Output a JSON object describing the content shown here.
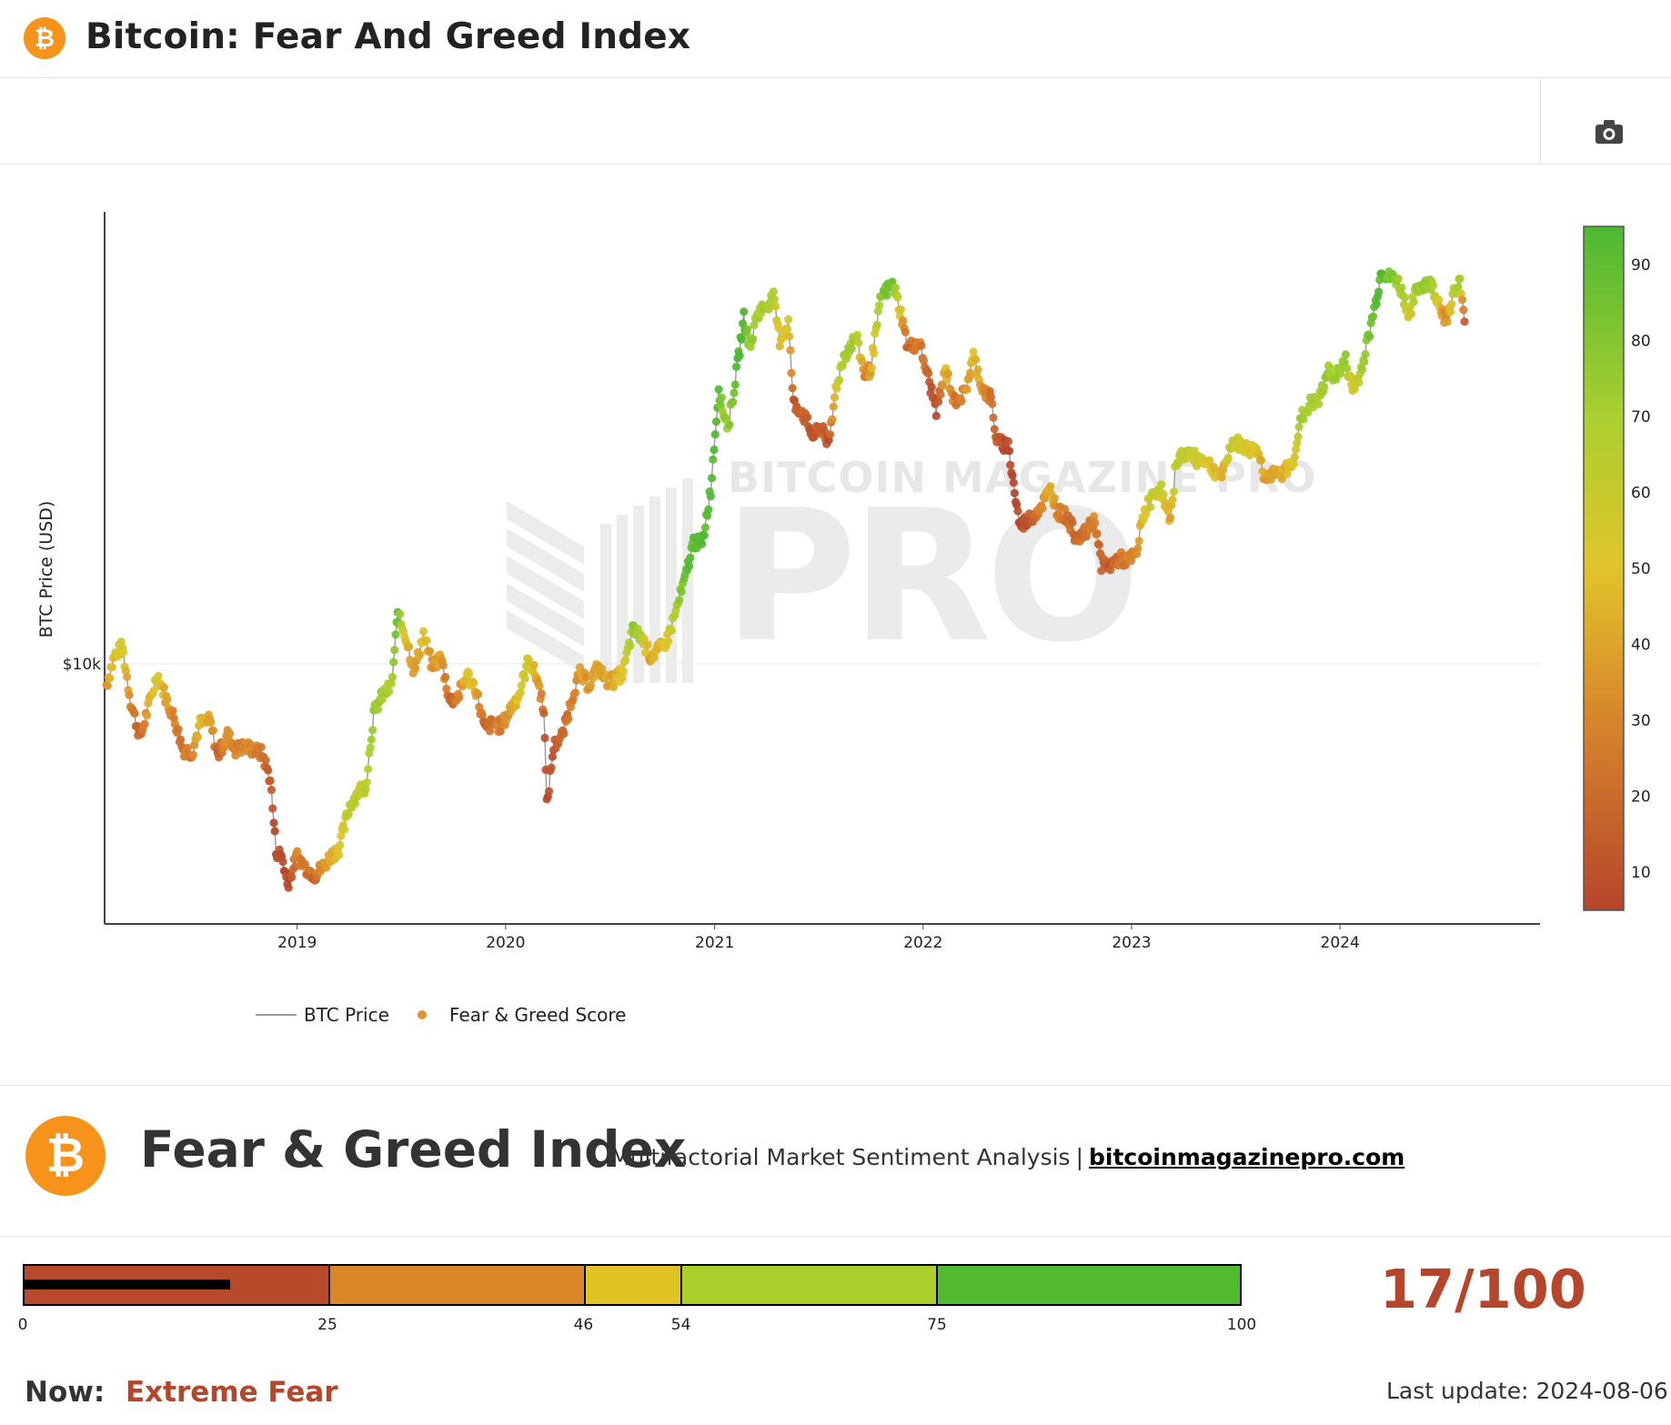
{
  "header": {
    "title": "Bitcoin: Fear And Greed Index",
    "logo_glyph": "₿"
  },
  "toolbar": {
    "camera_icon": "camera-icon"
  },
  "chart_data": {
    "type": "scatter",
    "title": "",
    "ylabel": "BTC Price (USD)",
    "y_scale": "log",
    "y_ticks": [
      {
        "value": 10000,
        "label": "$10k"
      }
    ],
    "x_ticks": [
      "2019",
      "2020",
      "2021",
      "2022",
      "2023",
      "2024"
    ],
    "legend": {
      "placement": "bottom-left",
      "price_label": "BTC Price",
      "score_label": "Fear & Greed Score"
    },
    "colorbar": {
      "ticks": [
        10,
        20,
        30,
        40,
        50,
        60,
        70,
        80,
        90
      ],
      "range": [
        5,
        95
      ]
    },
    "colors": {
      "low": "#b5452b",
      "mid_low": "#d9822b",
      "mid": "#e1c42a",
      "mid_high": "#abcf2f",
      "high": "#4db833"
    },
    "watermark": "BITCOIN MAGAZINE PRO",
    "series": [
      {
        "name": "BTC Price",
        "points": [
          [
            "2018-02-01",
            9000,
            36
          ],
          [
            "2018-02-15",
            10400,
            50
          ],
          [
            "2018-03-01",
            10900,
            58
          ],
          [
            "2018-03-15",
            8300,
            30
          ],
          [
            "2018-04-01",
            6900,
            20
          ],
          [
            "2018-04-15",
            8000,
            40
          ],
          [
            "2018-05-01",
            9500,
            58
          ],
          [
            "2018-05-15",
            8500,
            40
          ],
          [
            "2018-06-01",
            7500,
            30
          ],
          [
            "2018-06-15",
            6500,
            25
          ],
          [
            "2018-07-01",
            6400,
            30
          ],
          [
            "2018-07-15",
            7400,
            45
          ],
          [
            "2018-08-01",
            7500,
            40
          ],
          [
            "2018-08-15",
            6300,
            20
          ],
          [
            "2018-09-01",
            7000,
            35
          ],
          [
            "2018-09-15",
            6500,
            30
          ],
          [
            "2018-10-01",
            6600,
            32
          ],
          [
            "2018-10-15",
            6500,
            30
          ],
          [
            "2018-11-01",
            6350,
            25
          ],
          [
            "2018-11-15",
            5600,
            15
          ],
          [
            "2018-11-25",
            3900,
            10
          ],
          [
            "2018-12-05",
            3800,
            15
          ],
          [
            "2018-12-15",
            3300,
            10
          ],
          [
            "2019-01-01",
            3800,
            30
          ],
          [
            "2019-01-15",
            3600,
            25
          ],
          [
            "2019-02-01",
            3450,
            20
          ],
          [
            "2019-02-15",
            3600,
            35
          ],
          [
            "2019-03-01",
            3800,
            42
          ],
          [
            "2019-03-15",
            3950,
            50
          ],
          [
            "2019-04-03",
            4900,
            65
          ],
          [
            "2019-04-20",
            5300,
            62
          ],
          [
            "2019-05-01",
            5400,
            65
          ],
          [
            "2019-05-15",
            7800,
            75
          ],
          [
            "2019-06-01",
            8600,
            72
          ],
          [
            "2019-06-15",
            8900,
            68
          ],
          [
            "2019-06-26",
            12800,
            88
          ],
          [
            "2019-07-10",
            11500,
            50
          ],
          [
            "2019-07-25",
            9600,
            35
          ],
          [
            "2019-08-10",
            11600,
            50
          ],
          [
            "2019-08-25",
            9900,
            35
          ],
          [
            "2019-09-10",
            10300,
            40
          ],
          [
            "2019-09-25",
            8300,
            20
          ],
          [
            "2019-10-10",
            8500,
            30
          ],
          [
            "2019-10-25",
            9500,
            50
          ],
          [
            "2019-11-10",
            8800,
            40
          ],
          [
            "2019-11-25",
            7200,
            20
          ],
          [
            "2019-12-10",
            7400,
            25
          ],
          [
            "2019-12-25",
            7300,
            30
          ],
          [
            "2020-01-10",
            8000,
            40
          ],
          [
            "2020-01-25",
            8600,
            50
          ],
          [
            "2020-02-10",
            10200,
            60
          ],
          [
            "2020-02-25",
            9300,
            40
          ],
          [
            "2020-03-08",
            8000,
            20
          ],
          [
            "2020-03-13",
            4900,
            10
          ],
          [
            "2020-03-25",
            6600,
            15
          ],
          [
            "2020-04-10",
            7000,
            20
          ],
          [
            "2020-04-30",
            8800,
            30
          ],
          [
            "2020-05-10",
            9500,
            40
          ],
          [
            "2020-05-25",
            9000,
            35
          ],
          [
            "2020-06-10",
            9800,
            40
          ],
          [
            "2020-06-25",
            9200,
            40
          ],
          [
            "2020-07-10",
            9200,
            42
          ],
          [
            "2020-07-25",
            9600,
            52
          ],
          [
            "2020-08-10",
            11800,
            78
          ],
          [
            "2020-08-25",
            11500,
            70
          ],
          [
            "2020-09-10",
            10400,
            40
          ],
          [
            "2020-09-25",
            10700,
            45
          ],
          [
            "2020-10-10",
            11300,
            55
          ],
          [
            "2020-10-25",
            13000,
            70
          ],
          [
            "2020-11-10",
            15300,
            86
          ],
          [
            "2020-11-25",
            18500,
            90
          ],
          [
            "2020-12-10",
            18200,
            88
          ],
          [
            "2020-12-25",
            24000,
            92
          ],
          [
            "2021-01-08",
            40000,
            93
          ],
          [
            "2021-01-15",
            36000,
            75
          ],
          [
            "2021-01-25",
            33000,
            75
          ],
          [
            "2021-02-10",
            45000,
            93
          ],
          [
            "2021-02-21",
            57000,
            95
          ],
          [
            "2021-03-05",
            49000,
            75
          ],
          [
            "2021-03-15",
            58000,
            72
          ],
          [
            "2021-04-14",
            63000,
            70
          ],
          [
            "2021-04-25",
            51000,
            48
          ],
          [
            "2021-05-10",
            56000,
            55
          ],
          [
            "2021-05-19",
            37000,
            15
          ],
          [
            "2021-06-01",
            36000,
            20
          ],
          [
            "2021-06-22",
            31500,
            15
          ],
          [
            "2021-07-10",
            33000,
            20
          ],
          [
            "2021-07-20",
            29800,
            12
          ],
          [
            "2021-08-01",
            40000,
            55
          ],
          [
            "2021-08-15",
            47000,
            70
          ],
          [
            "2021-09-06",
            52000,
            74
          ],
          [
            "2021-09-20",
            43000,
            30
          ],
          [
            "2021-10-01",
            44000,
            40
          ],
          [
            "2021-10-20",
            64000,
            80
          ],
          [
            "2021-11-10",
            67500,
            84
          ],
          [
            "2021-11-25",
            57000,
            40
          ],
          [
            "2021-12-05",
            49000,
            20
          ],
          [
            "2021-12-25",
            50500,
            30
          ],
          [
            "2022-01-10",
            42000,
            20
          ],
          [
            "2022-01-24",
            36000,
            10
          ],
          [
            "2022-02-10",
            44000,
            45
          ],
          [
            "2022-02-24",
            37500,
            25
          ],
          [
            "2022-03-15",
            39000,
            30
          ],
          [
            "2022-03-30",
            47000,
            50
          ],
          [
            "2022-04-15",
            40000,
            35
          ],
          [
            "2022-04-30",
            38000,
            25
          ],
          [
            "2022-05-10",
            30500,
            15
          ],
          [
            "2022-05-30",
            30000,
            12
          ],
          [
            "2022-06-14",
            22000,
            8
          ],
          [
            "2022-06-20",
            20000,
            10
          ],
          [
            "2022-07-10",
            21000,
            20
          ],
          [
            "2022-07-25",
            22000,
            28
          ],
          [
            "2022-08-12",
            24000,
            45
          ],
          [
            "2022-08-25",
            21500,
            30
          ],
          [
            "2022-09-10",
            21000,
            25
          ],
          [
            "2022-09-25",
            19000,
            20
          ],
          [
            "2022-10-10",
            19200,
            25
          ],
          [
            "2022-10-29",
            20600,
            32
          ],
          [
            "2022-11-09",
            16500,
            20
          ],
          [
            "2022-11-25",
            16400,
            18
          ],
          [
            "2022-12-10",
            17000,
            25
          ],
          [
            "2022-12-25",
            16800,
            28
          ],
          [
            "2023-01-10",
            17300,
            32
          ],
          [
            "2023-01-20",
            21000,
            50
          ],
          [
            "2023-02-05",
            23000,
            60
          ],
          [
            "2023-02-20",
            24500,
            62
          ],
          [
            "2023-03-10",
            20200,
            40
          ],
          [
            "2023-03-20",
            28000,
            65
          ],
          [
            "2023-04-10",
            29000,
            62
          ],
          [
            "2023-04-25",
            28000,
            58
          ],
          [
            "2023-05-10",
            28000,
            52
          ],
          [
            "2023-05-25",
            26500,
            48
          ],
          [
            "2023-06-10",
            25800,
            42
          ],
          [
            "2023-06-25",
            30500,
            62
          ],
          [
            "2023-07-10",
            30200,
            56
          ],
          [
            "2023-07-25",
            29300,
            52
          ],
          [
            "2023-08-10",
            29500,
            50
          ],
          [
            "2023-08-20",
            26000,
            38
          ],
          [
            "2023-09-10",
            25800,
            40
          ],
          [
            "2023-09-25",
            26300,
            45
          ],
          [
            "2023-10-10",
            27500,
            50
          ],
          [
            "2023-10-25",
            34500,
            72
          ],
          [
            "2023-11-10",
            37000,
            72
          ],
          [
            "2023-11-25",
            37500,
            70
          ],
          [
            "2023-12-10",
            43500,
            74
          ],
          [
            "2023-12-25",
            42800,
            72
          ],
          [
            "2024-01-11",
            46000,
            74
          ],
          [
            "2024-01-23",
            39500,
            52
          ],
          [
            "2024-02-05",
            43000,
            68
          ],
          [
            "2024-02-20",
            52000,
            80
          ],
          [
            "2024-03-05",
            63000,
            88
          ],
          [
            "2024-03-14",
            73000,
            90
          ],
          [
            "2024-03-25",
            70000,
            82
          ],
          [
            "2024-04-10",
            69000,
            76
          ],
          [
            "2024-04-20",
            64000,
            70
          ],
          [
            "2024-05-01",
            58000,
            55
          ],
          [
            "2024-05-15",
            66000,
            76
          ],
          [
            "2024-05-30",
            68000,
            74
          ],
          [
            "2024-06-10",
            67000,
            72
          ],
          [
            "2024-06-24",
            61000,
            48
          ],
          [
            "2024-07-05",
            56000,
            30
          ],
          [
            "2024-07-20",
            66000,
            68
          ],
          [
            "2024-07-29",
            68000,
            70
          ],
          [
            "2024-08-02",
            62000,
            35
          ],
          [
            "2024-08-06",
            56000,
            17
          ]
        ]
      },
      {
        "name": "Fear & Greed Score"
      }
    ]
  },
  "index_panel": {
    "logo_glyph": "₿",
    "title": "Fear & Greed Index",
    "subtitle": "Multifactorial Market Sentiment Analysis",
    "separator": "|",
    "link_text": "bitcoinmagazinepro.com"
  },
  "gauge": {
    "value": 17,
    "max": 100,
    "score_text": "17/100",
    "segments": [
      {
        "from": 0,
        "to": 25,
        "color": "#b84a2c"
      },
      {
        "from": 25,
        "to": 46,
        "color": "#d98727"
      },
      {
        "from": 46,
        "to": 54,
        "color": "#e2c326"
      },
      {
        "from": 54,
        "to": 75,
        "color": "#accf2c"
      },
      {
        "from": 75,
        "to": 100,
        "color": "#52ba2f"
      }
    ],
    "ticks": [
      "0",
      "25",
      "46",
      "54",
      "75",
      "100"
    ]
  },
  "status": {
    "now_label": "Now:",
    "now_value": "Extreme Fear",
    "last_update": "Last update: 2024-08-06"
  }
}
